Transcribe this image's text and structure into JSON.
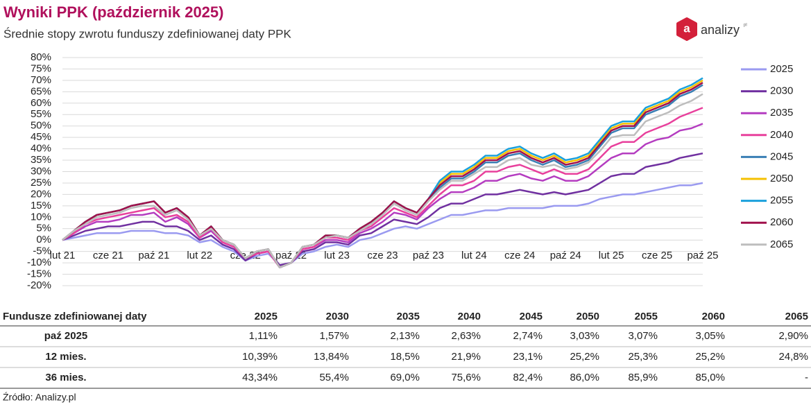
{
  "chart_data": {
    "type": "line",
    "title": "Wyniki PPK (październik 2025)",
    "subtitle": "Średnie stopy zwrotu funduszy zdefiniowanej daty PPK",
    "categories": [
      "lut 21",
      null,
      null,
      null,
      "cze 21",
      null,
      null,
      null,
      "paź 21",
      null,
      null,
      null,
      "lut 22",
      null,
      null,
      null,
      "cze 22",
      null,
      null,
      null,
      "paź 22",
      null,
      null,
      null,
      "lut 23",
      null,
      null,
      null,
      "cze 23",
      null,
      null,
      null,
      "paź 23",
      null,
      null,
      null,
      "lut 24",
      null,
      null,
      null,
      "cze 24",
      null,
      null,
      null,
      "paź 24",
      null,
      null,
      null,
      "lut 25",
      null,
      null,
      null,
      "cze 25",
      null,
      null,
      null,
      "paź 25"
    ],
    "ylim": [
      -20,
      80
    ],
    "yticks": [
      {
        "value": -20,
        "label": "-20%"
      },
      {
        "value": -15,
        "label": "-15%"
      },
      {
        "value": -10,
        "label": "-10%"
      },
      {
        "value": -5,
        "label": "-5%"
      },
      {
        "value": 0,
        "label": "0%"
      },
      {
        "value": 5,
        "label": "5%"
      },
      {
        "value": 10,
        "label": "10%"
      },
      {
        "value": 15,
        "label": "15%"
      },
      {
        "value": 20,
        "label": "20%"
      },
      {
        "value": 25,
        "label": "25%"
      },
      {
        "value": 30,
        "label": "30%"
      },
      {
        "value": 35,
        "label": "35%"
      },
      {
        "value": 40,
        "label": "40%"
      },
      {
        "value": 45,
        "label": "45%"
      },
      {
        "value": 50,
        "label": "50%"
      },
      {
        "value": 55,
        "label": "55%"
      },
      {
        "value": 60,
        "label": "60%"
      },
      {
        "value": 65,
        "label": "65%"
      },
      {
        "value": 70,
        "label": "70%"
      },
      {
        "value": 75,
        "label": "75%"
      },
      {
        "value": 80,
        "label": "80%"
      }
    ],
    "grid": true,
    "legend": "right",
    "series": [
      {
        "name": "2025",
        "color": "#9a9af0",
        "values": [
          0,
          1,
          2,
          3,
          3,
          3,
          4,
          4,
          4,
          3,
          3,
          2,
          -1,
          0,
          -3,
          -5,
          -9,
          -7,
          -6,
          -11,
          -10,
          -6,
          -5,
          -3,
          -2,
          -3,
          0,
          1,
          3,
          5,
          6,
          5,
          7,
          9,
          11,
          11,
          12,
          13,
          13,
          14,
          14,
          14,
          14,
          15,
          15,
          15,
          16,
          18,
          19,
          20,
          20,
          21,
          22,
          23,
          24,
          24,
          25
        ]
      },
      {
        "name": "2030",
        "color": "#7030a0",
        "values": [
          0,
          2,
          4,
          5,
          6,
          6,
          7,
          8,
          8,
          6,
          6,
          4,
          0,
          2,
          -2,
          -4,
          -9,
          -6,
          -5,
          -11,
          -10,
          -5,
          -4,
          -1,
          -1,
          -2,
          2,
          3,
          6,
          9,
          8,
          7,
          10,
          14,
          16,
          16,
          18,
          20,
          20,
          21,
          22,
          21,
          20,
          21,
          20,
          21,
          22,
          25,
          28,
          29,
          29,
          32,
          33,
          34,
          36,
          37,
          38
        ]
      },
      {
        "name": "2035",
        "color": "#b43cc0",
        "values": [
          0,
          3,
          6,
          8,
          8,
          9,
          11,
          11,
          12,
          8,
          10,
          7,
          1,
          4,
          -1,
          -3,
          -8,
          -6,
          -5,
          -12,
          -10,
          -4,
          -3,
          0,
          0,
          -1,
          3,
          5,
          8,
          12,
          11,
          9,
          14,
          18,
          21,
          21,
          23,
          26,
          26,
          28,
          29,
          27,
          26,
          28,
          26,
          26,
          28,
          32,
          36,
          38,
          38,
          42,
          44,
          45,
          48,
          49,
          51
        ]
      },
      {
        "name": "2040",
        "color": "#e8409c",
        "values": [
          0,
          3,
          7,
          9,
          10,
          11,
          12,
          13,
          14,
          10,
          11,
          8,
          1,
          5,
          -1,
          -3,
          -8,
          -6,
          -5,
          -12,
          -10,
          -4,
          -3,
          1,
          1,
          0,
          4,
          6,
          10,
          14,
          12,
          10,
          15,
          20,
          24,
          24,
          26,
          30,
          30,
          32,
          33,
          31,
          29,
          31,
          29,
          29,
          31,
          36,
          41,
          43,
          43,
          47,
          49,
          51,
          54,
          56,
          58
        ]
      },
      {
        "name": "2045",
        "color": "#3a7fb5",
        "values": [
          0,
          4,
          8,
          11,
          12,
          13,
          15,
          16,
          17,
          12,
          14,
          10,
          2,
          6,
          0,
          -2,
          -8,
          -5,
          -4,
          -12,
          -10,
          -3,
          -2,
          2,
          2,
          1,
          5,
          8,
          12,
          17,
          14,
          12,
          18,
          23,
          27,
          27,
          30,
          34,
          34,
          37,
          38,
          35,
          33,
          35,
          32,
          33,
          35,
          41,
          47,
          49,
          49,
          55,
          57,
          59,
          63,
          65,
          68
        ]
      },
      {
        "name": "2050",
        "color": "#f5c000",
        "values": [
          0,
          4,
          8,
          11,
          12,
          13,
          15,
          16,
          17,
          12,
          14,
          10,
          2,
          6,
          0,
          -2,
          -8,
          -5,
          -4,
          -12,
          -10,
          -3,
          -2,
          2,
          2,
          1,
          5,
          8,
          12,
          17,
          14,
          12,
          18,
          25,
          29,
          29,
          32,
          36,
          36,
          39,
          40,
          37,
          35,
          37,
          34,
          35,
          37,
          43,
          49,
          51,
          51,
          57,
          59,
          61,
          65,
          67,
          70
        ]
      },
      {
        "name": "2055",
        "color": "#1aa0dc",
        "values": [
          0,
          4,
          8,
          11,
          12,
          13,
          15,
          16,
          17,
          12,
          14,
          10,
          2,
          6,
          0,
          -2,
          -8,
          -5,
          -4,
          -12,
          -10,
          -3,
          -2,
          2,
          2,
          1,
          5,
          8,
          12,
          17,
          14,
          12,
          18,
          26,
          30,
          30,
          33,
          37,
          37,
          40,
          41,
          38,
          36,
          38,
          35,
          36,
          38,
          44,
          50,
          52,
          52,
          58,
          60,
          62,
          66,
          68,
          71
        ]
      },
      {
        "name": "2060",
        "color": "#a0104c",
        "values": [
          0,
          4,
          8,
          11,
          12,
          13,
          15,
          16,
          17,
          12,
          14,
          10,
          2,
          6,
          0,
          -2,
          -8,
          -5,
          -4,
          -12,
          -10,
          -3,
          -2,
          2,
          2,
          1,
          5,
          8,
          12,
          17,
          14,
          12,
          18,
          24,
          28,
          28,
          31,
          35,
          35,
          38,
          39,
          36,
          34,
          36,
          33,
          34,
          36,
          42,
          48,
          50,
          50,
          56,
          58,
          60,
          64,
          66,
          69
        ]
      },
      {
        "name": "2065",
        "color": "#bdbdbd",
        "values": [
          0,
          4,
          7,
          10,
          11,
          12,
          14,
          15,
          15,
          11,
          13,
          9,
          2,
          5,
          0,
          -2,
          -8,
          -5,
          -4,
          -12,
          -10,
          -3,
          -2,
          1,
          2,
          1,
          4,
          7,
          11,
          16,
          13,
          11,
          17,
          22,
          26,
          26,
          29,
          32,
          32,
          35,
          36,
          33,
          32,
          33,
          31,
          32,
          34,
          39,
          45,
          46,
          46,
          52,
          54,
          56,
          59,
          61,
          64
        ]
      }
    ]
  },
  "table": {
    "header": [
      "Fundusze zdefiniowanej daty",
      "2025",
      "2030",
      "2035",
      "2040",
      "2045",
      "2050",
      "2055",
      "2060",
      "2065"
    ],
    "rows": [
      [
        "paź 2025",
        "1,11%",
        "1,57%",
        "2,13%",
        "2,63%",
        "2,74%",
        "3,03%",
        "3,07%",
        "3,05%",
        "2,90%"
      ],
      [
        "12 mies.",
        "10,39%",
        "13,84%",
        "18,5%",
        "21,9%",
        "23,1%",
        "25,2%",
        "25,3%",
        "25,2%",
        "24,8%"
      ],
      [
        "36 mies.",
        "43,34%",
        "55,4%",
        "69,0%",
        "75,6%",
        "82,4%",
        "86,0%",
        "85,9%",
        "85,0%",
        "-"
      ]
    ]
  },
  "logo": {
    "mark": "a",
    "name": "analizy",
    "suffix": "pl"
  },
  "source": "Źródło: Analizy.pl"
}
